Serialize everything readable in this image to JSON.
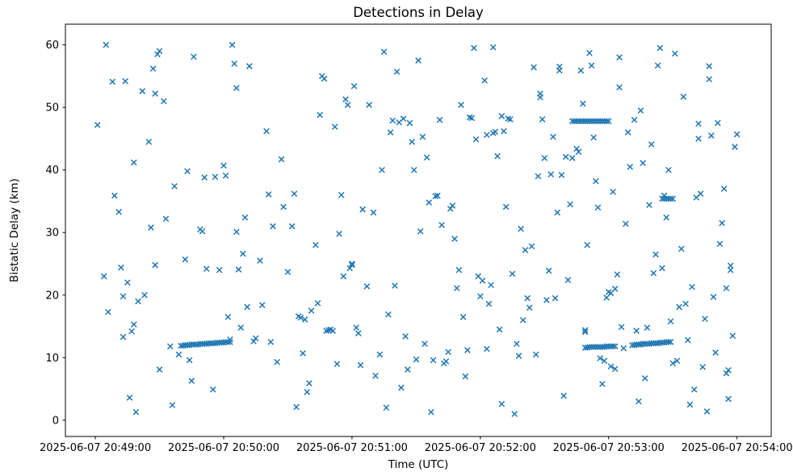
{
  "chart_data": {
    "type": "scatter",
    "title": "Detections in Delay",
    "xlabel": "Time (UTC)",
    "ylabel": "Bistatic Delay (km)",
    "marker": "x",
    "marker_color": "#1f77b4",
    "x_unit": "seconds after 2025-06-07 20:49:00 UTC",
    "xlim": [
      -14,
      316
    ],
    "ylim": [
      -2.6,
      63.3
    ],
    "grid": false,
    "legend": "none",
    "x_ticks": [
      {
        "t": 0,
        "label": "2025-06-07 20:49:00"
      },
      {
        "t": 60,
        "label": "2025-06-07 20:50:00"
      },
      {
        "t": 120,
        "label": "2025-06-07 20:51:00"
      },
      {
        "t": 180,
        "label": "2025-06-07 20:52:00"
      },
      {
        "t": 240,
        "label": "2025-06-07 20:53:00"
      },
      {
        "t": 300,
        "label": "2025-06-07 20:54:00"
      }
    ],
    "y_ticks": [
      0,
      10,
      20,
      30,
      40,
      50,
      60
    ],
    "points": [
      [
        1,
        47.2
      ],
      [
        4,
        23.0
      ],
      [
        5,
        60.0
      ],
      [
        6,
        17.3
      ],
      [
        8,
        54.1
      ],
      [
        9,
        35.9
      ],
      [
        11,
        33.3
      ],
      [
        12,
        24.4
      ],
      [
        13,
        19.8
      ],
      [
        13,
        13.3
      ],
      [
        14,
        54.2
      ],
      [
        15,
        22.0
      ],
      [
        16,
        3.6
      ],
      [
        17,
        14.2
      ],
      [
        18,
        15.3
      ],
      [
        18,
        41.2
      ],
      [
        19,
        1.3
      ],
      [
        20,
        19.0
      ],
      [
        22,
        52.6
      ],
      [
        23,
        20.0
      ],
      [
        25,
        44.5
      ],
      [
        26,
        30.8
      ],
      [
        27,
        56.2
      ],
      [
        28,
        52.2
      ],
      [
        28,
        24.8
      ],
      [
        29,
        58.5
      ],
      [
        30,
        59.0
      ],
      [
        30,
        8.1
      ],
      [
        32,
        51.0
      ],
      [
        33,
        32.2
      ],
      [
        35,
        11.8
      ],
      [
        36,
        2.4
      ],
      [
        37,
        37.4
      ],
      [
        39,
        10.5
      ],
      [
        40,
        11.9
      ],
      [
        41,
        11.9
      ],
      [
        42,
        12.0
      ],
      [
        43,
        12.0
      ],
      [
        44,
        12.0
      ],
      [
        45,
        12.1
      ],
      [
        46,
        12.1
      ],
      [
        47,
        12.1
      ],
      [
        48,
        12.1
      ],
      [
        49,
        12.2
      ],
      [
        50,
        12.2
      ],
      [
        51,
        12.2
      ],
      [
        52,
        12.2
      ],
      [
        53,
        12.3
      ],
      [
        54,
        12.3
      ],
      [
        55,
        12.3
      ],
      [
        56,
        12.3
      ],
      [
        57,
        12.4
      ],
      [
        58,
        12.4
      ],
      [
        59,
        12.4
      ],
      [
        60,
        12.4
      ],
      [
        61,
        12.5
      ],
      [
        62,
        12.5
      ],
      [
        63,
        12.5
      ],
      [
        42,
        25.7
      ],
      [
        43,
        39.8
      ],
      [
        44,
        9.6
      ],
      [
        45,
        6.3
      ],
      [
        46,
        58.1
      ],
      [
        49,
        30.5
      ],
      [
        50,
        30.2
      ],
      [
        51,
        38.8
      ],
      [
        52,
        24.2
      ],
      [
        55,
        4.9
      ],
      [
        56,
        38.9
      ],
      [
        58,
        24.0
      ],
      [
        60,
        40.7
      ],
      [
        61,
        39.1
      ],
      [
        62,
        16.5
      ],
      [
        63,
        12.9
      ],
      [
        64,
        60.0
      ],
      [
        65,
        57.0
      ],
      [
        66,
        53.1
      ],
      [
        66,
        30.1
      ],
      [
        67,
        24.1
      ],
      [
        68,
        14.8
      ],
      [
        69,
        26.6
      ],
      [
        70,
        32.4
      ],
      [
        71,
        18.1
      ],
      [
        72,
        56.6
      ],
      [
        74,
        12.6
      ],
      [
        75,
        13.1
      ],
      [
        77,
        25.5
      ],
      [
        78,
        18.4
      ],
      [
        80,
        46.2
      ],
      [
        81,
        36.1
      ],
      [
        82,
        12.5
      ],
      [
        83,
        31.0
      ],
      [
        85,
        9.3
      ],
      [
        87,
        41.7
      ],
      [
        88,
        34.1
      ],
      [
        90,
        23.7
      ],
      [
        92,
        31.0
      ],
      [
        93,
        36.2
      ],
      [
        94,
        2.1
      ],
      [
        95,
        16.6
      ],
      [
        96,
        16.4
      ],
      [
        97,
        10.7
      ],
      [
        98,
        16.1
      ],
      [
        99,
        4.5
      ],
      [
        100,
        5.9
      ],
      [
        101,
        17.5
      ],
      [
        103,
        28.0
      ],
      [
        104,
        18.7
      ],
      [
        105,
        48.8
      ],
      [
        106,
        55.0
      ],
      [
        107,
        54.6
      ],
      [
        108,
        14.3
      ],
      [
        109,
        14.4
      ],
      [
        110,
        14.5
      ],
      [
        111,
        14.3
      ],
      [
        112,
        46.9
      ],
      [
        113,
        9.0
      ],
      [
        114,
        29.8
      ],
      [
        115,
        36.0
      ],
      [
        116,
        23.0
      ],
      [
        117,
        51.3
      ],
      [
        118,
        50.4
      ],
      [
        119,
        24.3
      ],
      [
        120,
        25.0
      ],
      [
        120,
        24.8
      ],
      [
        121,
        53.4
      ],
      [
        122,
        14.8
      ],
      [
        123,
        13.9
      ],
      [
        124,
        8.8
      ],
      [
        125,
        33.7
      ],
      [
        127,
        21.4
      ],
      [
        128,
        50.4
      ],
      [
        130,
        33.2
      ],
      [
        131,
        7.1
      ],
      [
        133,
        10.5
      ],
      [
        134,
        40.0
      ],
      [
        135,
        58.9
      ],
      [
        136,
        2.0
      ],
      [
        137,
        16.9
      ],
      [
        138,
        46.0
      ],
      [
        139,
        47.9
      ],
      [
        140,
        21.5
      ],
      [
        141,
        55.7
      ],
      [
        142,
        47.6
      ],
      [
        143,
        5.2
      ],
      [
        144,
        48.2
      ],
      [
        145,
        13.4
      ],
      [
        146,
        8.1
      ],
      [
        147,
        47.5
      ],
      [
        148,
        44.5
      ],
      [
        149,
        40.0
      ],
      [
        150,
        9.7
      ],
      [
        151,
        57.5
      ],
      [
        152,
        30.2
      ],
      [
        153,
        45.3
      ],
      [
        154,
        12.2
      ],
      [
        155,
        42.0
      ],
      [
        156,
        34.8
      ],
      [
        157,
        1.3
      ],
      [
        158,
        9.6
      ],
      [
        159,
        35.8
      ],
      [
        160,
        35.9
      ],
      [
        161,
        48.0
      ],
      [
        162,
        31.2
      ],
      [
        163,
        9.1
      ],
      [
        164,
        9.4
      ],
      [
        165,
        10.9
      ],
      [
        166,
        33.8
      ],
      [
        167,
        34.3
      ],
      [
        168,
        29.0
      ],
      [
        169,
        21.1
      ],
      [
        170,
        24.0
      ],
      [
        171,
        50.4
      ],
      [
        172,
        16.5
      ],
      [
        173,
        7.0
      ],
      [
        174,
        11.2
      ],
      [
        175,
        48.4
      ],
      [
        176,
        48.3
      ],
      [
        177,
        59.5
      ],
      [
        178,
        44.9
      ],
      [
        179,
        23.0
      ],
      [
        180,
        19.8
      ],
      [
        181,
        22.3
      ],
      [
        182,
        54.3
      ],
      [
        183,
        45.6
      ],
      [
        183,
        11.4
      ],
      [
        184,
        18.6
      ],
      [
        185,
        21.6
      ],
      [
        186,
        59.6
      ],
      [
        186,
        45.9
      ],
      [
        187,
        46.1
      ],
      [
        188,
        42.2
      ],
      [
        189,
        14.5
      ],
      [
        190,
        48.6
      ],
      [
        190,
        2.6
      ],
      [
        191,
        46.2
      ],
      [
        192,
        34.1
      ],
      [
        193,
        48.2
      ],
      [
        194,
        48.1
      ],
      [
        195,
        23.4
      ],
      [
        196,
        1.0
      ],
      [
        197,
        12.2
      ],
      [
        198,
        10.3
      ],
      [
        199,
        30.6
      ],
      [
        200,
        16.0
      ],
      [
        201,
        27.2
      ],
      [
        202,
        19.5
      ],
      [
        203,
        18.0
      ],
      [
        204,
        27.8
      ],
      [
        205,
        56.4
      ],
      [
        206,
        10.5
      ],
      [
        207,
        39.0
      ],
      [
        208,
        52.2
      ],
      [
        208,
        51.6
      ],
      [
        209,
        48.1
      ],
      [
        210,
        41.9
      ],
      [
        211,
        19.2
      ],
      [
        212,
        23.9
      ],
      [
        213,
        39.3
      ],
      [
        214,
        45.3
      ],
      [
        215,
        19.5
      ],
      [
        216,
        33.2
      ],
      [
        217,
        56.5
      ],
      [
        217,
        55.9
      ],
      [
        218,
        39.2
      ],
      [
        219,
        3.9
      ],
      [
        220,
        42.1
      ],
      [
        221,
        22.4
      ],
      [
        222,
        34.5
      ],
      [
        223,
        41.9
      ],
      [
        223,
        47.8
      ],
      [
        224,
        47.8
      ],
      [
        225,
        47.8
      ],
      [
        226,
        47.8
      ],
      [
        227,
        47.8
      ],
      [
        228,
        47.8
      ],
      [
        229,
        47.8
      ],
      [
        230,
        47.8
      ],
      [
        231,
        47.8
      ],
      [
        232,
        47.8
      ],
      [
        233,
        47.8
      ],
      [
        234,
        47.8
      ],
      [
        235,
        47.8
      ],
      [
        236,
        47.8
      ],
      [
        237,
        47.8
      ],
      [
        238,
        47.8
      ],
      [
        239,
        47.8
      ],
      [
        240,
        47.8
      ],
      [
        229,
        11.6
      ],
      [
        230,
        11.6
      ],
      [
        231,
        11.7
      ],
      [
        232,
        11.7
      ],
      [
        233,
        11.7
      ],
      [
        234,
        11.7
      ],
      [
        235,
        11.7
      ],
      [
        236,
        11.7
      ],
      [
        237,
        11.7
      ],
      [
        238,
        11.7
      ],
      [
        239,
        11.8
      ],
      [
        240,
        11.8
      ],
      [
        241,
        11.8
      ],
      [
        242,
        11.8
      ],
      [
        243,
        11.8
      ],
      [
        225,
        43.4
      ],
      [
        226,
        42.9
      ],
      [
        227,
        55.9
      ],
      [
        228,
        50.6
      ],
      [
        229,
        14.4
      ],
      [
        229,
        14.1
      ],
      [
        230,
        28.0
      ],
      [
        231,
        58.7
      ],
      [
        232,
        56.7
      ],
      [
        233,
        45.2
      ],
      [
        234,
        38.2
      ],
      [
        235,
        34.0
      ],
      [
        236,
        9.9
      ],
      [
        237,
        5.8
      ],
      [
        238,
        9.5
      ],
      [
        239,
        19.6
      ],
      [
        240,
        20.5
      ],
      [
        241,
        20.3
      ],
      [
        241,
        8.6
      ],
      [
        242,
        36.5
      ],
      [
        243,
        21.0
      ],
      [
        243,
        8.2
      ],
      [
        244,
        23.3
      ],
      [
        245,
        53.2
      ],
      [
        245,
        58.0
      ],
      [
        246,
        14.9
      ],
      [
        247,
        11.5
      ],
      [
        248,
        31.4
      ],
      [
        249,
        46.0
      ],
      [
        250,
        40.5
      ],
      [
        251,
        12.0
      ],
      [
        252,
        12.0
      ],
      [
        253,
        12.1
      ],
      [
        254,
        12.1
      ],
      [
        255,
        12.1
      ],
      [
        256,
        12.2
      ],
      [
        257,
        12.2
      ],
      [
        258,
        12.2
      ],
      [
        259,
        12.2
      ],
      [
        260,
        12.3
      ],
      [
        261,
        12.3
      ],
      [
        262,
        12.3
      ],
      [
        263,
        12.3
      ],
      [
        264,
        12.4
      ],
      [
        265,
        12.4
      ],
      [
        266,
        12.4
      ],
      [
        267,
        12.5
      ],
      [
        268,
        12.5
      ],
      [
        269,
        12.5
      ],
      [
        265,
        35.4
      ],
      [
        266,
        35.4
      ],
      [
        267,
        35.4
      ],
      [
        268,
        35.4
      ],
      [
        269,
        35.4
      ],
      [
        270,
        35.4
      ],
      [
        252,
        48.0
      ],
      [
        253,
        14.3
      ],
      [
        254,
        3.0
      ],
      [
        255,
        49.5
      ],
      [
        256,
        41.1
      ],
      [
        257,
        6.7
      ],
      [
        258,
        14.8
      ],
      [
        259,
        34.4
      ],
      [
        260,
        44.1
      ],
      [
        261,
        23.5
      ],
      [
        262,
        26.5
      ],
      [
        263,
        56.7
      ],
      [
        264,
        59.5
      ],
      [
        265,
        24.3
      ],
      [
        266,
        35.9
      ],
      [
        267,
        32.4
      ],
      [
        268,
        40.0
      ],
      [
        269,
        15.8
      ],
      [
        270,
        9.1
      ],
      [
        271,
        58.6
      ],
      [
        272,
        9.5
      ],
      [
        273,
        18.1
      ],
      [
        274,
        27.4
      ],
      [
        275,
        51.7
      ],
      [
        276,
        18.6
      ],
      [
        277,
        12.8
      ],
      [
        278,
        2.5
      ],
      [
        279,
        21.3
      ],
      [
        280,
        4.9
      ],
      [
        281,
        35.6
      ],
      [
        282,
        47.4
      ],
      [
        282,
        45.0
      ],
      [
        283,
        36.2
      ],
      [
        284,
        8.5
      ],
      [
        285,
        16.2
      ],
      [
        286,
        1.4
      ],
      [
        287,
        56.6
      ],
      [
        287,
        54.5
      ],
      [
        288,
        45.5
      ],
      [
        289,
        19.7
      ],
      [
        290,
        10.8
      ],
      [
        291,
        47.5
      ],
      [
        292,
        28.2
      ],
      [
        293,
        31.5
      ],
      [
        294,
        37.0
      ],
      [
        295,
        7.5
      ],
      [
        295,
        21.1
      ],
      [
        296,
        8.0
      ],
      [
        296,
        3.4
      ],
      [
        297,
        24.0
      ],
      [
        297,
        24.7
      ],
      [
        298,
        13.5
      ],
      [
        299,
        43.7
      ],
      [
        300,
        45.7
      ]
    ]
  }
}
